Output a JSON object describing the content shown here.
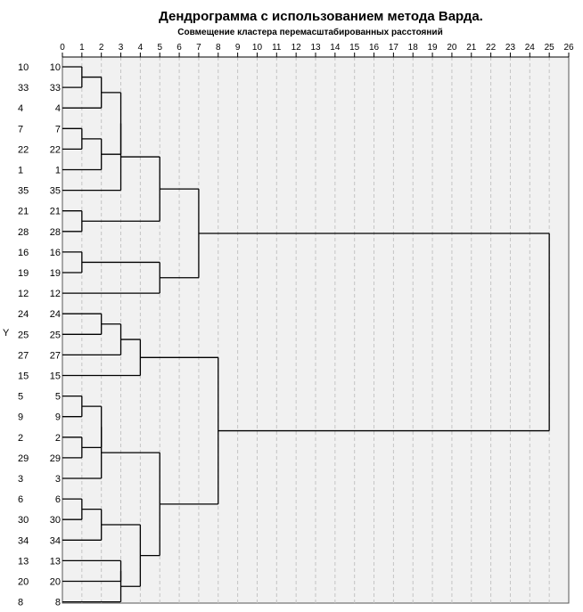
{
  "chart_data": {
    "type": "dendrogram",
    "title": "Дендрограмма с использованием метода Варда.",
    "xlabel": "Совмещение кластера перемасштабированных расстояний",
    "ylabel": "Y",
    "xlim": [
      0,
      26
    ],
    "x_ticks": [
      0,
      1,
      2,
      3,
      4,
      5,
      6,
      7,
      8,
      9,
      10,
      11,
      12,
      13,
      14,
      15,
      16,
      17,
      18,
      19,
      20,
      21,
      22,
      23,
      24,
      25,
      26
    ],
    "grid": true,
    "leaves": [
      "10",
      "33",
      "4",
      "7",
      "22",
      "1",
      "35",
      "21",
      "28",
      "16",
      "19",
      "12",
      "24",
      "25",
      "27",
      "15",
      "5",
      "9",
      "2",
      "29",
      "3",
      "6",
      "30",
      "34",
      "13",
      "20",
      "8"
    ],
    "merges": [
      {
        "a": "L:10",
        "b": "L:33",
        "height": 1
      },
      {
        "a": "L:7",
        "b": "L:22",
        "height": 1
      },
      {
        "a": "L:21",
        "b": "L:28",
        "height": 1
      },
      {
        "a": "L:16",
        "b": "L:19",
        "height": 1
      },
      {
        "a": "L:5",
        "b": "L:9",
        "height": 1
      },
      {
        "a": "L:2",
        "b": "L:29",
        "height": 1
      },
      {
        "a": "L:6",
        "b": "L:30",
        "height": 1
      },
      {
        "a": "M:0",
        "b": "L:4",
        "height": 2
      },
      {
        "a": "M:1",
        "b": "L:1",
        "height": 2
      },
      {
        "a": "L:24",
        "b": "L:25",
        "height": 2
      },
      {
        "a": "M:4",
        "b": "M:5",
        "height": 2
      },
      {
        "a": "M:10",
        "b": "L:3",
        "height": 2
      },
      {
        "a": "M:6",
        "b": "L:34",
        "height": 2
      },
      {
        "a": "M:7",
        "b": "M:8",
        "height": 3
      },
      {
        "a": "M:13",
        "b": "L:35",
        "height": 3
      },
      {
        "a": "M:9",
        "b": "L:27",
        "height": 3
      },
      {
        "a": "L:13",
        "b": "L:20",
        "height": 3
      },
      {
        "a": "M:16",
        "b": "L:8",
        "height": 3
      },
      {
        "a": "M:15",
        "b": "L:15",
        "height": 4
      },
      {
        "a": "M:12",
        "b": "M:17",
        "height": 4
      },
      {
        "a": "M:14",
        "b": "M:2",
        "height": 5
      },
      {
        "a": "M:3",
        "b": "L:12",
        "height": 5
      },
      {
        "a": "M:11",
        "b": "M:19",
        "height": 5
      },
      {
        "a": "M:20",
        "b": "M:21",
        "height": 7
      },
      {
        "a": "M:18",
        "b": "M:22",
        "height": 8
      },
      {
        "a": "M:23",
        "b": "M:24",
        "height": 25
      }
    ]
  }
}
